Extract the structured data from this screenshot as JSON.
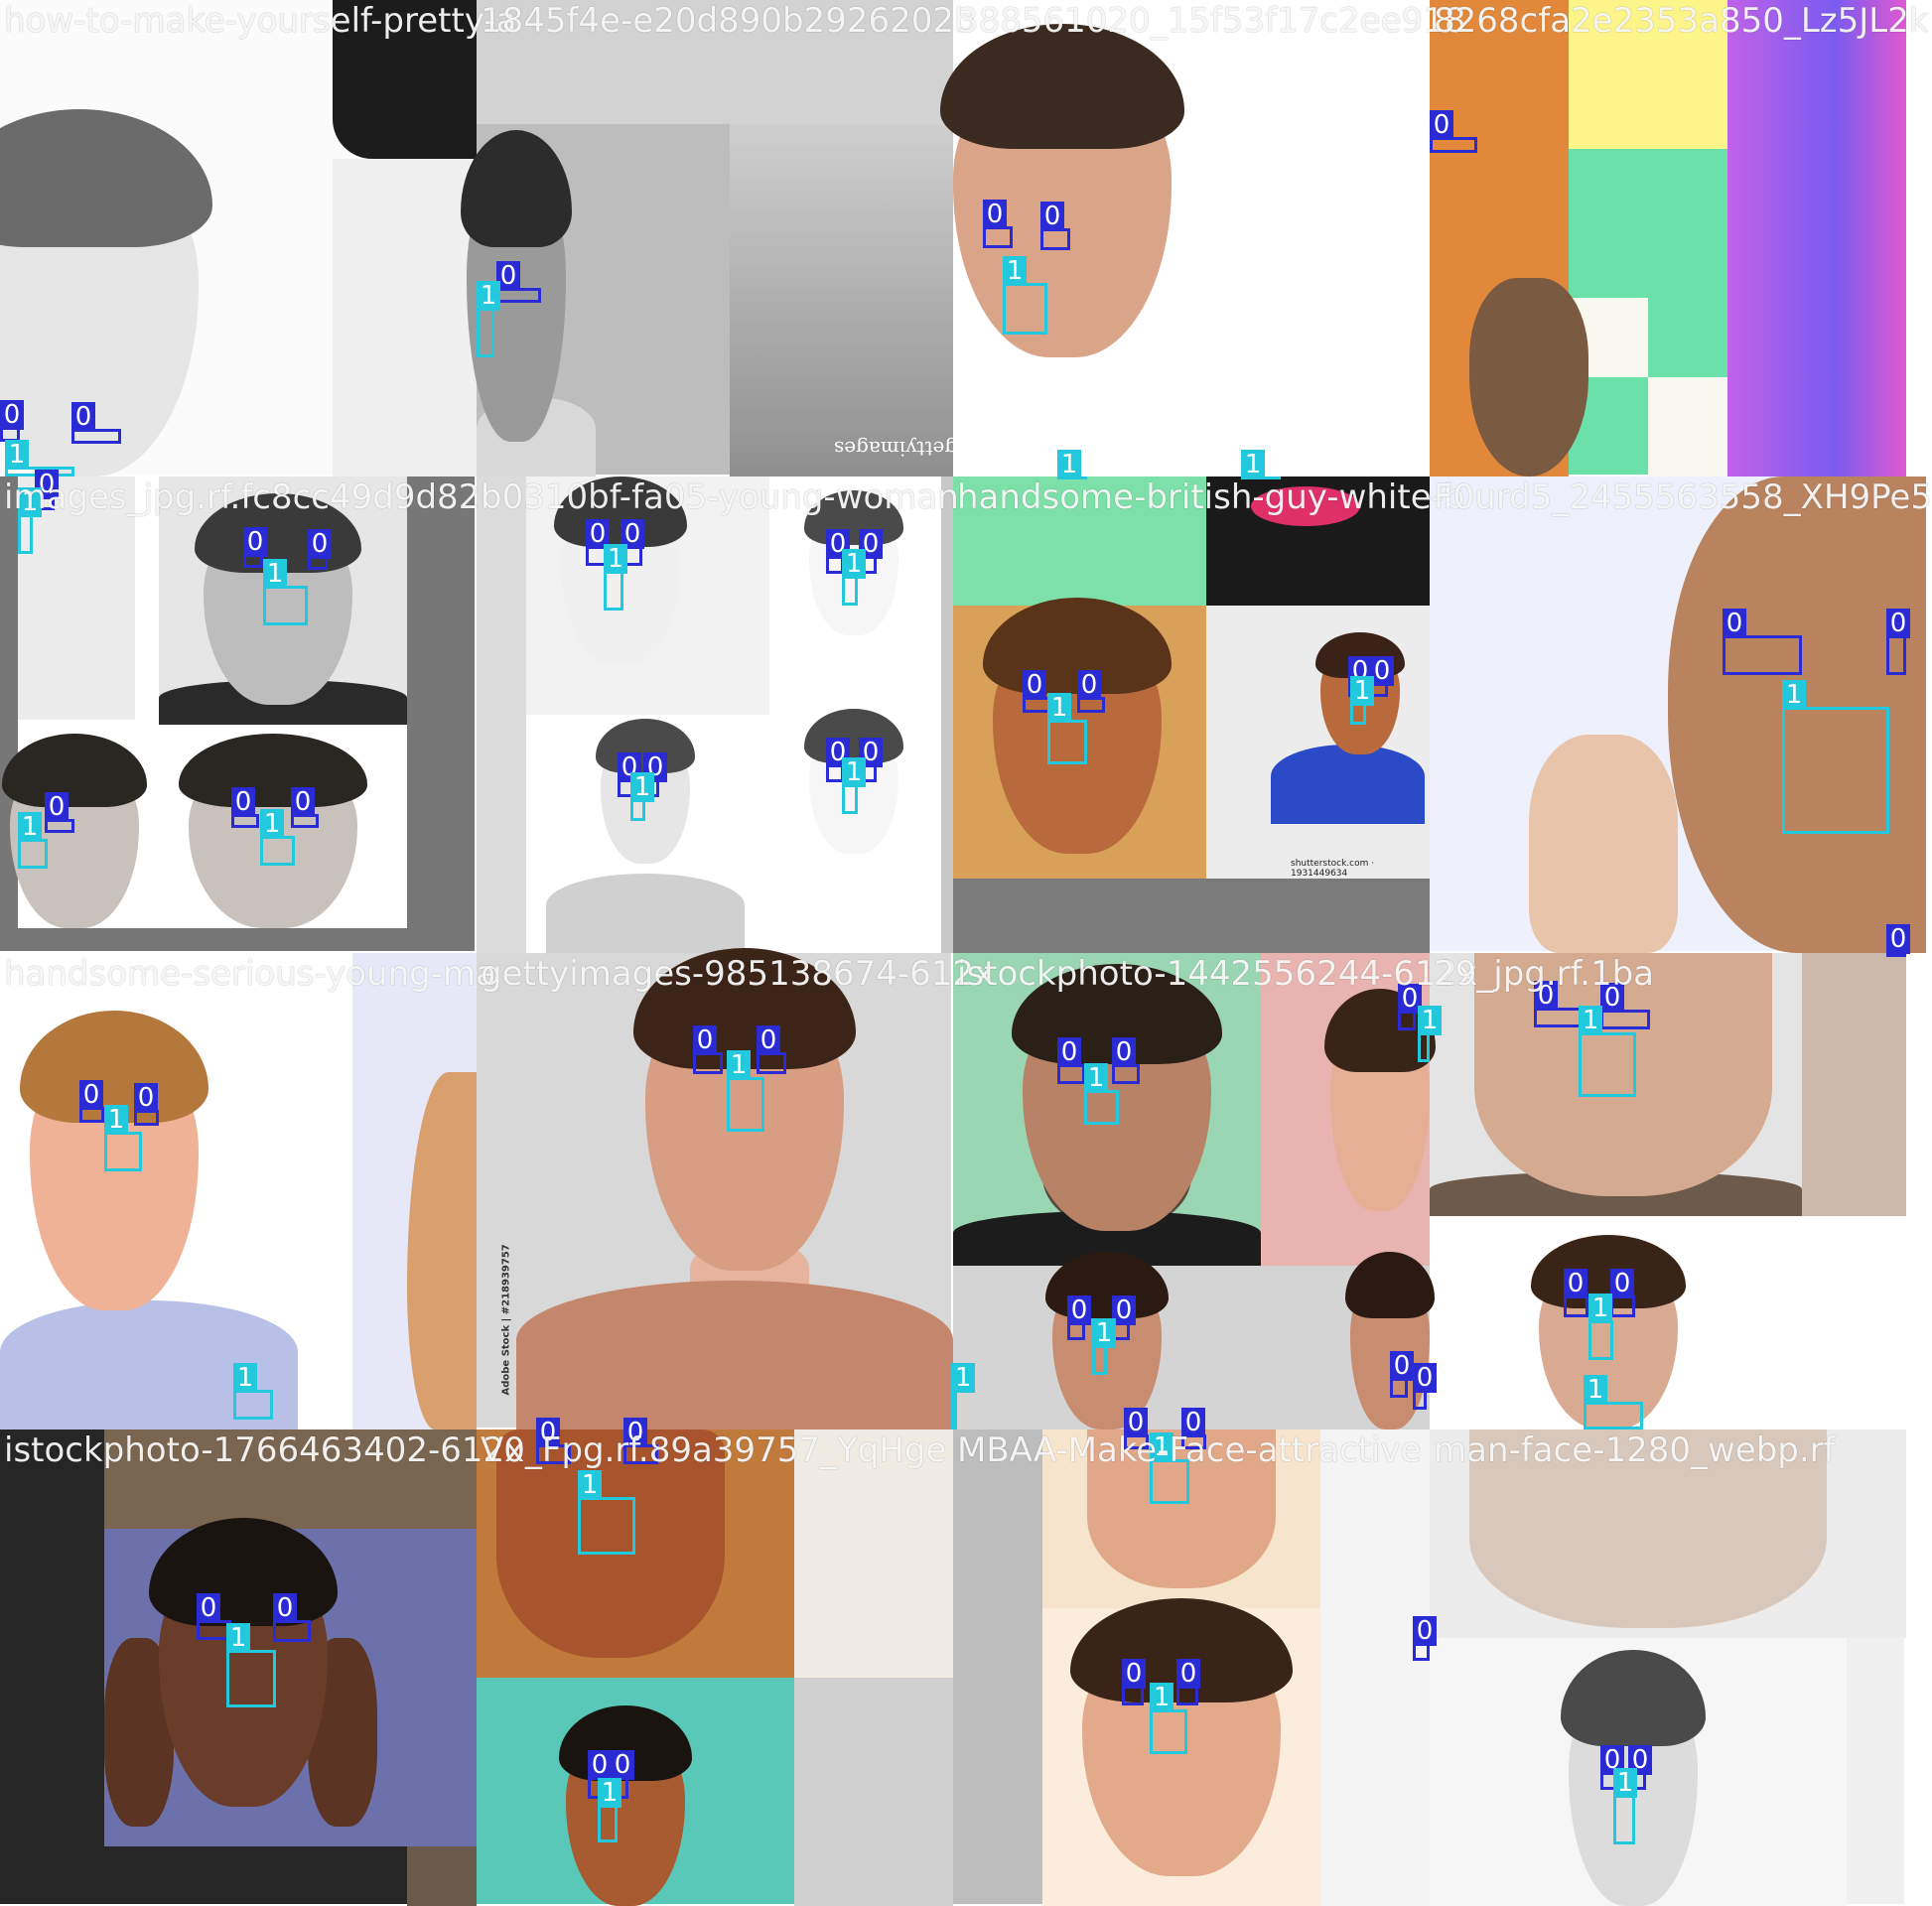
{
  "mosaic": {
    "colors": {
      "class_0_box": "#2b2bd6",
      "class_1_box": "#22c8dc",
      "title_text": "#ffffff"
    },
    "tiles": [
      {
        "title": "how-to-make-yourself-pretty-a",
        "scene": "grayscale man, side profile, bright white background"
      },
      {
        "title": "1845f4e-e20d890b2926202b",
        "scene": "grayscale woman portrait collage, gettyimages watermark"
      },
      {
        "title": "388561020_15f53f17c2ee918",
        "scene": "smiling bearded man on white background"
      },
      {
        "title": "8268cfa2e2353a850_Lz5JL2k",
        "scene": "bearded man beside colorful pixelated pattern"
      },
      {
        "title": "images_jpg.rf.fc8cc49d9d82",
        "scene": "grayscale smiling man, curly haired man collage"
      },
      {
        "title": "b0310bf-fa05-young-woman",
        "scene": "high-key white faces collage"
      },
      {
        "title": "handsome-british-guy-white-b",
        "scene": "young man portrait, shutterstock man in blue sweater"
      },
      {
        "title": "F0urd5_2455563558_XH9Pe5",
        "scene": "close-up woman face with hand"
      },
      {
        "title": "handsome-serious-young-ma",
        "scene": "blond man in light turtleneck, pastel background"
      },
      {
        "title": "gettyimages-985138674-612x",
        "scene": "woman with hands under chin, Adobe Stock"
      },
      {
        "title": "istockphoto-1442556244-612x",
        "scene": "bearded man, woman collage on pastel background"
      },
      {
        "title": "29_jpg.rf.1ba",
        "scene": "man and woman frontal portraits"
      },
      {
        "title": "istockphoto-1766463402-612x",
        "scene": "woman with hands framing face, dark background"
      },
      {
        "title": "V0_Fpg.rf.89a39757_YqHge",
        "scene": "young man portrait, teal background collage"
      },
      {
        "title": "MBAA-Make-Face-attractive",
        "scene": "young man frontal portraits, cream background"
      },
      {
        "title": "man-face-1280_webp.rf",
        "scene": "man jawline close-up, grayscale man face"
      }
    ],
    "detections": {
      "class_0": "0",
      "class_1": "1"
    },
    "watermarks": {
      "getty": "gettyimages",
      "shutterstock": "shutterstock.com · 1931449634",
      "adobe": "Adobe Stock | #218939757"
    }
  }
}
